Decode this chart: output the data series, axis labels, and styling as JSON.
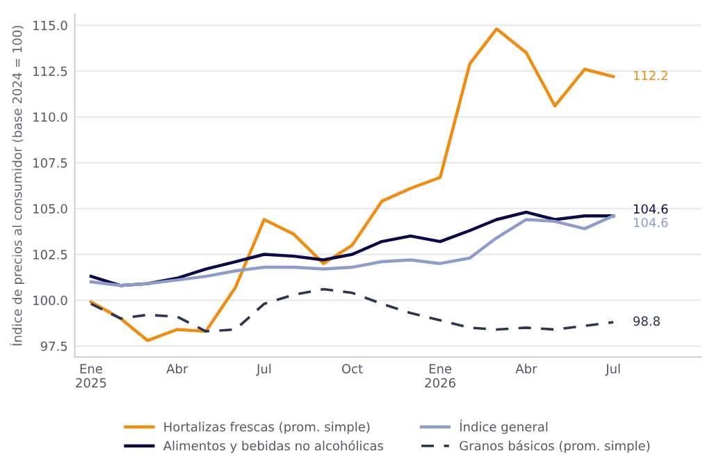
{
  "chart_data": {
    "type": "line",
    "ylabel": "Índice de precios al consumidor (base 2024 = 100)",
    "x": [
      "2025-01",
      "2025-02",
      "2025-03",
      "2025-04",
      "2025-05",
      "2025-06",
      "2025-07",
      "2025-08",
      "2025-09",
      "2025-10",
      "2025-11",
      "2025-12",
      "2026-01",
      "2026-02",
      "2026-03",
      "2026-04",
      "2026-05",
      "2026-06",
      "2026-07"
    ],
    "series": [
      {
        "name": "Hortalizas frescas (prom. simple)",
        "color": "#f28c0f",
        "line_style": "solid",
        "values": [
          99.9,
          99.0,
          97.8,
          98.4,
          98.3,
          100.7,
          104.4,
          103.6,
          102.0,
          103.0,
          105.4,
          106.1,
          106.7,
          112.9,
          114.8,
          113.5,
          110.6,
          112.6,
          112.2
        ]
      },
      {
        "name": "Alimentos y bebidas no alcohólicas",
        "color": "#0a0a4a",
        "line_style": "solid",
        "values": [
          101.3,
          100.8,
          100.9,
          101.2,
          101.7,
          102.1,
          102.5,
          102.4,
          102.2,
          102.5,
          103.2,
          103.5,
          103.2,
          103.8,
          104.4,
          104.8,
          104.4,
          104.6,
          104.6
        ]
      },
      {
        "name": "Índice general",
        "color": "#8e9ccb",
        "line_style": "solid",
        "values": [
          101.0,
          100.8,
          100.9,
          101.1,
          101.3,
          101.6,
          101.8,
          101.8,
          101.7,
          101.8,
          102.1,
          102.2,
          102.0,
          102.3,
          103.4,
          104.4,
          104.3,
          103.9,
          104.6
        ]
      },
      {
        "name": "Granos básicos (prom. simple)",
        "color": "#2b3550",
        "line_style": "dashed",
        "values": [
          99.8,
          99.0,
          99.2,
          99.1,
          98.3,
          98.4,
          99.8,
          100.3,
          100.6,
          100.4,
          99.8,
          99.3,
          98.9,
          98.5,
          98.4,
          98.5,
          98.4,
          98.6,
          98.8
        ]
      }
    ],
    "annotations": [
      {
        "text": "112.2",
        "x": "2026-07",
        "y": 112.2
      },
      {
        "text": "104.6",
        "x": "2026-07",
        "y": 104.6
      },
      {
        "text": "104.6",
        "x": "2026-07",
        "y": 104.6
      },
      {
        "text": "98.8",
        "x": "2026-07",
        "y": 98.8
      }
    ],
    "xlim": [
      "2024-12-15",
      "2026-10-01"
    ],
    "xticks": [
      {
        "value": "2025-01",
        "label": "Ene\n2025"
      },
      {
        "value": "2025-04",
        "label": "Abr"
      },
      {
        "value": "2025-07",
        "label": "Jul"
      },
      {
        "value": "2025-10",
        "label": "Oct"
      },
      {
        "value": "2026-01",
        "label": "Ene\n2026"
      },
      {
        "value": "2026-04",
        "label": "Abr"
      },
      {
        "value": "2026-07",
        "label": "Jul"
      }
    ],
    "ylim": [
      96.9,
      115.6
    ],
    "yticks": [
      97.5,
      {
        "value": 100,
        "label": "100.0"
      },
      102.5,
      {
        "value": 105,
        "label": "105.0"
      },
      107.5,
      {
        "value": 110,
        "label": "110.0"
      },
      112.5,
      {
        "value": 115,
        "label": "115.0"
      }
    ],
    "grid": "y",
    "legend": "bottom",
    "marker": "none"
  }
}
